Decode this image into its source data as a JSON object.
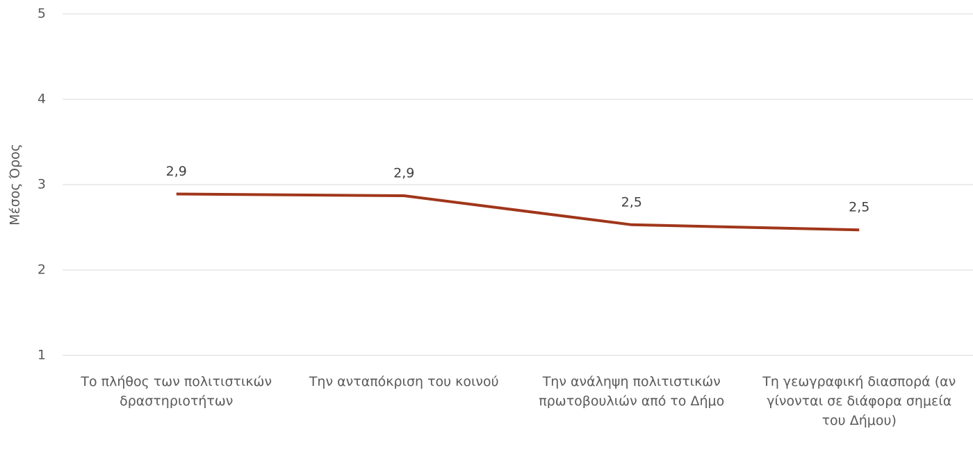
{
  "chart_data": {
    "type": "line",
    "y_label": "Μέσος Όρος",
    "categories": [
      "Το πλήθος των πολιτιστικών δραστηριοτήτων",
      "Την ανταπόκριση του κοινού",
      "Την ανάληψη πολιτιστικών πρωτοβουλιών από το Δήμο",
      "Τη γεωγραφική διασπορά (αν γίνονται σε διάφορα σημεία του Δήμου)"
    ],
    "series": [
      {
        "name": "Μέσος Όρος",
        "color": "#a0361a",
        "values": [
          2.89,
          2.87,
          2.53,
          2.47
        ],
        "value_labels": [
          "2,9",
          "2,9",
          "2,5",
          "2,5"
        ]
      }
    ],
    "ylim": [
      1,
      5
    ],
    "yticks": [
      1,
      2,
      3,
      4,
      5
    ],
    "grid": true
  }
}
